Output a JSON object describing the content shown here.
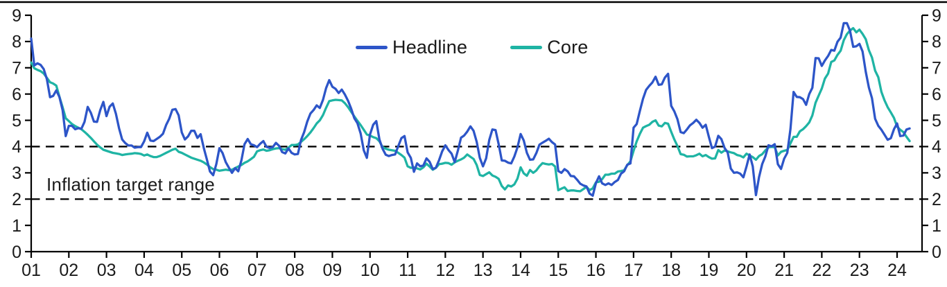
{
  "chart_data": {
    "type": "line",
    "title": "",
    "x_axis": {
      "start_year": 2001,
      "start_month": 1,
      "tick_labels": [
        "01",
        "02",
        "03",
        "04",
        "05",
        "06",
        "07",
        "08",
        "09",
        "10",
        "11",
        "12",
        "13",
        "14",
        "15",
        "16",
        "17",
        "18",
        "19",
        "20",
        "21",
        "22",
        "23",
        "24"
      ]
    },
    "y_axis": {
      "min": 0,
      "max": 9,
      "ticks": [
        "0",
        "1",
        "2",
        "3",
        "4",
        "5",
        "6",
        "7",
        "8",
        "9"
      ],
      "sides": [
        "left",
        "right"
      ],
      "grid": false
    },
    "reference_lines": [
      {
        "value": 4,
        "style": "dashed",
        "color": "#000000"
      },
      {
        "value": 2,
        "style": "dashed",
        "color": "#000000"
      }
    ],
    "annotation": {
      "text": "Inflation target range"
    },
    "legend": {
      "position": "top-center-inside",
      "items": [
        {
          "label": "Headline",
          "color": "#2d55c8"
        },
        {
          "label": "Core",
          "color": "#1fb4a4"
        }
      ]
    },
    "series": [
      {
        "name": "Headline",
        "color": "#2d55c8",
        "values": [
          8.11,
          7.09,
          7.17,
          7.11,
          6.95,
          6.57,
          5.88,
          5.93,
          6.14,
          5.89,
          5.39,
          4.4,
          4.79,
          4.79,
          4.66,
          4.7,
          4.68,
          4.94,
          5.51,
          5.29,
          4.95,
          4.94,
          5.39,
          5.7,
          5.16,
          5.52,
          5.64,
          5.25,
          4.7,
          4.27,
          4.13,
          4.04,
          4.04,
          3.96,
          3.98,
          3.98,
          4.2,
          4.53,
          4.23,
          4.21,
          4.29,
          4.37,
          4.49,
          4.82,
          5.06,
          5.4,
          5.43,
          5.19,
          4.54,
          4.27,
          4.39,
          4.6,
          4.6,
          4.33,
          4.47,
          3.95,
          3.51,
          3.05,
          2.91,
          3.33,
          3.94,
          3.75,
          3.41,
          3.2,
          3.0,
          3.18,
          3.06,
          3.47,
          4.09,
          4.29,
          4.09,
          4.05,
          3.98,
          4.11,
          4.21,
          3.99,
          3.95,
          3.98,
          4.14,
          4.03,
          3.79,
          3.74,
          3.93,
          3.76,
          3.7,
          3.72,
          4.25,
          4.55,
          4.95,
          5.26,
          5.39,
          5.57,
          5.47,
          5.78,
          6.23,
          6.53,
          6.28,
          6.2,
          6.04,
          6.17,
          5.98,
          5.74,
          5.44,
          5.08,
          4.89,
          4.5,
          3.86,
          3.57,
          4.46,
          4.83,
          4.97,
          4.27,
          3.92,
          3.69,
          3.64,
          3.68,
          3.7,
          4.02,
          4.32,
          4.4,
          3.78,
          3.57,
          3.04,
          3.36,
          3.25,
          3.28,
          3.55,
          3.42,
          3.14,
          3.2,
          3.48,
          3.82,
          4.05,
          3.87,
          3.73,
          3.41,
          3.85,
          4.34,
          4.42,
          4.57,
          4.77,
          4.6,
          4.18,
          3.57,
          3.25,
          3.55,
          4.25,
          4.65,
          4.63,
          4.09,
          3.47,
          3.46,
          3.39,
          3.36,
          3.62,
          3.97,
          4.48,
          4.23,
          3.76,
          3.5,
          3.51,
          3.75,
          4.07,
          4.15,
          4.22,
          4.3,
          4.17,
          4.08,
          3.07,
          3.0,
          3.14,
          3.06,
          2.88,
          2.87,
          2.74,
          2.59,
          2.52,
          2.48,
          2.21,
          2.13,
          2.61,
          2.87,
          2.6,
          2.54,
          2.6,
          2.54,
          2.65,
          2.73,
          2.97,
          3.06,
          3.31,
          3.36,
          4.72,
          4.86,
          5.35,
          5.82,
          6.16,
          6.31,
          6.44,
          6.66,
          6.35,
          6.37,
          6.63,
          6.77,
          5.55,
          5.34,
          5.04,
          4.55,
          4.51,
          4.65,
          4.81,
          4.9,
          5.02,
          4.9,
          4.72,
          4.83,
          4.37,
          3.94,
          4.0,
          4.41,
          4.28,
          3.95,
          3.78,
          3.16,
          3.0,
          3.02,
          2.97,
          2.83,
          3.24,
          3.7,
          3.25,
          2.15,
          2.84,
          3.33,
          3.62,
          4.05,
          4.01,
          4.09,
          3.33,
          3.15,
          3.54,
          3.76,
          4.67,
          6.08,
          5.89,
          5.88,
          5.81,
          5.59,
          6.0,
          6.24,
          7.37,
          7.36,
          7.07,
          7.28,
          7.45,
          7.68,
          7.65,
          7.99,
          8.15,
          8.7,
          8.7,
          8.41,
          7.8,
          7.82,
          7.91,
          7.62,
          6.85,
          6.25,
          5.84,
          5.06,
          4.79,
          4.64,
          4.45,
          4.26,
          4.32,
          4.66,
          4.88,
          4.4,
          4.42,
          4.65,
          4.69
        ]
      },
      {
        "name": "Core",
        "color": "#1fb4a4",
        "values": [
          7.2,
          6.98,
          6.92,
          6.87,
          6.78,
          6.62,
          6.45,
          6.4,
          6.32,
          5.9,
          5.5,
          5.08,
          4.97,
          4.86,
          4.78,
          4.72,
          4.66,
          4.56,
          4.45,
          4.33,
          4.2,
          4.07,
          3.97,
          3.88,
          3.84,
          3.8,
          3.76,
          3.74,
          3.72,
          3.68,
          3.7,
          3.72,
          3.73,
          3.75,
          3.74,
          3.72,
          3.66,
          3.7,
          3.64,
          3.6,
          3.6,
          3.64,
          3.7,
          3.76,
          3.82,
          3.88,
          3.92,
          3.8,
          3.76,
          3.7,
          3.64,
          3.58,
          3.54,
          3.5,
          3.46,
          3.4,
          3.32,
          3.22,
          3.14,
          3.12,
          3.08,
          3.1,
          3.12,
          3.1,
          3.12,
          3.18,
          3.24,
          3.3,
          3.38,
          3.44,
          3.52,
          3.61,
          3.82,
          3.86,
          3.89,
          3.84,
          3.86,
          3.9,
          3.93,
          3.94,
          3.9,
          3.88,
          3.96,
          4.06,
          4.06,
          4.08,
          4.18,
          4.28,
          4.4,
          4.54,
          4.7,
          4.88,
          5.0,
          5.2,
          5.48,
          5.73,
          5.76,
          5.78,
          5.77,
          5.76,
          5.65,
          5.5,
          5.32,
          5.15,
          4.98,
          4.82,
          4.64,
          4.46,
          4.42,
          4.36,
          4.32,
          4.2,
          3.98,
          3.92,
          3.88,
          3.86,
          3.84,
          3.76,
          3.68,
          3.58,
          3.25,
          3.19,
          3.21,
          3.17,
          3.13,
          3.21,
          3.35,
          3.24,
          3.12,
          3.19,
          3.33,
          3.35,
          3.38,
          3.37,
          3.31,
          3.4,
          3.46,
          3.51,
          3.58,
          3.7,
          3.61,
          3.53,
          3.3,
          2.92,
          2.88,
          2.95,
          3.02,
          2.9,
          2.85,
          2.77,
          2.5,
          2.37,
          2.52,
          2.48,
          2.56,
          2.78,
          3.21,
          2.98,
          2.89,
          3.11,
          3.0,
          3.09,
          3.25,
          3.37,
          3.34,
          3.32,
          3.34,
          3.24,
          2.34,
          2.4,
          2.45,
          2.31,
          2.33,
          2.33,
          2.31,
          2.3,
          2.38,
          2.47,
          2.34,
          2.41,
          2.64,
          2.66,
          2.76,
          2.93,
          2.93,
          2.97,
          2.97,
          3.05,
          3.07,
          3.1,
          3.29,
          3.44,
          3.84,
          4.2,
          4.48,
          4.72,
          4.78,
          4.83,
          4.94,
          5.0,
          4.8,
          4.77,
          4.9,
          4.87,
          4.56,
          4.27,
          4.02,
          3.71,
          3.69,
          3.62,
          3.63,
          3.63,
          3.67,
          3.73,
          3.63,
          3.68,
          3.6,
          3.54,
          3.55,
          3.87,
          3.77,
          3.85,
          3.82,
          3.78,
          3.75,
          3.68,
          3.65,
          3.59,
          3.73,
          3.66,
          3.6,
          3.5,
          3.64,
          3.71,
          3.85,
          3.97,
          3.99,
          3.98,
          3.66,
          3.8,
          3.84,
          3.87,
          4.12,
          4.37,
          4.37,
          4.58,
          4.66,
          4.78,
          4.92,
          5.19,
          5.67,
          5.94,
          6.21,
          6.59,
          6.78,
          7.22,
          7.28,
          7.49,
          7.65,
          8.05,
          8.28,
          8.42,
          8.51,
          8.35,
          8.45,
          8.29,
          8.09,
          7.67,
          7.39,
          6.89,
          6.64,
          6.08,
          5.76,
          5.5,
          5.3,
          5.09,
          4.76,
          4.64,
          4.55,
          4.37,
          4.21
        ]
      }
    ]
  },
  "style": {
    "background": "#ffffff",
    "axis_color": "#000000",
    "text_color": "#1a1a1a"
  }
}
